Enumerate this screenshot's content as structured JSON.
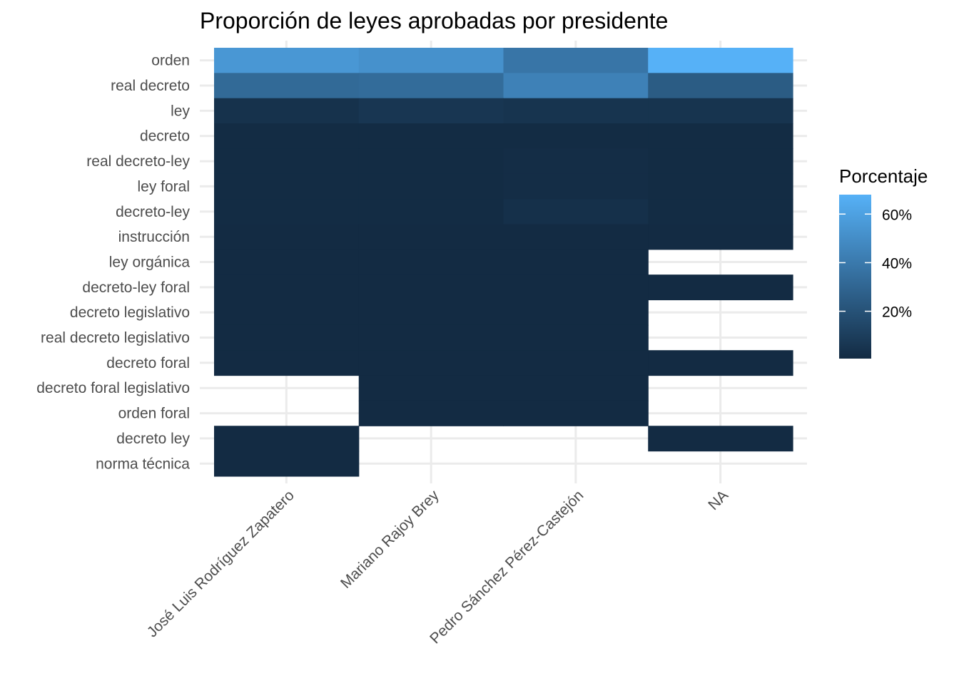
{
  "chart_data": {
    "type": "heatmap",
    "title": "Proporción de leyes aprobadas por presidente",
    "x_categories": [
      "José Luis Rodríguez Zapatero",
      "Mariano Rajoy Brey",
      "Pedro Sánchez Pérez-Castejón",
      "NA"
    ],
    "y_categories": [
      "orden",
      "real decreto",
      "ley",
      "decreto",
      "real decreto-ley",
      "ley foral",
      "decreto-ley",
      "instrucción",
      "ley orgánica",
      "decreto-ley foral",
      "decreto legislativo",
      "real decreto legislativo",
      "decreto foral",
      "decreto foral legislativo",
      "orden foral",
      "decreto ley",
      "norma técnica"
    ],
    "values": [
      [
        55,
        52,
        38,
        68
      ],
      [
        32,
        33,
        44,
        25
      ],
      [
        4,
        6,
        5,
        5
      ],
      [
        1,
        1,
        1,
        1
      ],
      [
        1,
        1,
        1.5,
        1
      ],
      [
        1,
        1,
        1.5,
        1
      ],
      [
        1,
        1,
        3,
        1
      ],
      [
        0.5,
        0.5,
        0.5,
        0.5
      ],
      [
        0.5,
        0.5,
        0.5,
        null
      ],
      [
        0.5,
        0.5,
        0.5,
        0.5
      ],
      [
        0.5,
        0.5,
        0.5,
        null
      ],
      [
        0.5,
        0.5,
        0.5,
        null
      ],
      [
        0.5,
        0.5,
        0.5,
        0.5
      ],
      [
        null,
        0.5,
        0.5,
        null
      ],
      [
        null,
        0.5,
        0.5,
        null
      ],
      [
        0.5,
        null,
        null,
        0.5
      ],
      [
        0.5,
        null,
        null,
        null
      ]
    ],
    "value_unit": "%",
    "legend": {
      "title": "Porcentaje",
      "position": "right",
      "ticks": [
        "20%",
        "40%",
        "60%"
      ],
      "tick_values": [
        20,
        40,
        60
      ],
      "range": [
        0.5,
        68
      ]
    },
    "color_low": "#132b43",
    "color_high": "#56b1f7",
    "grid": true
  }
}
